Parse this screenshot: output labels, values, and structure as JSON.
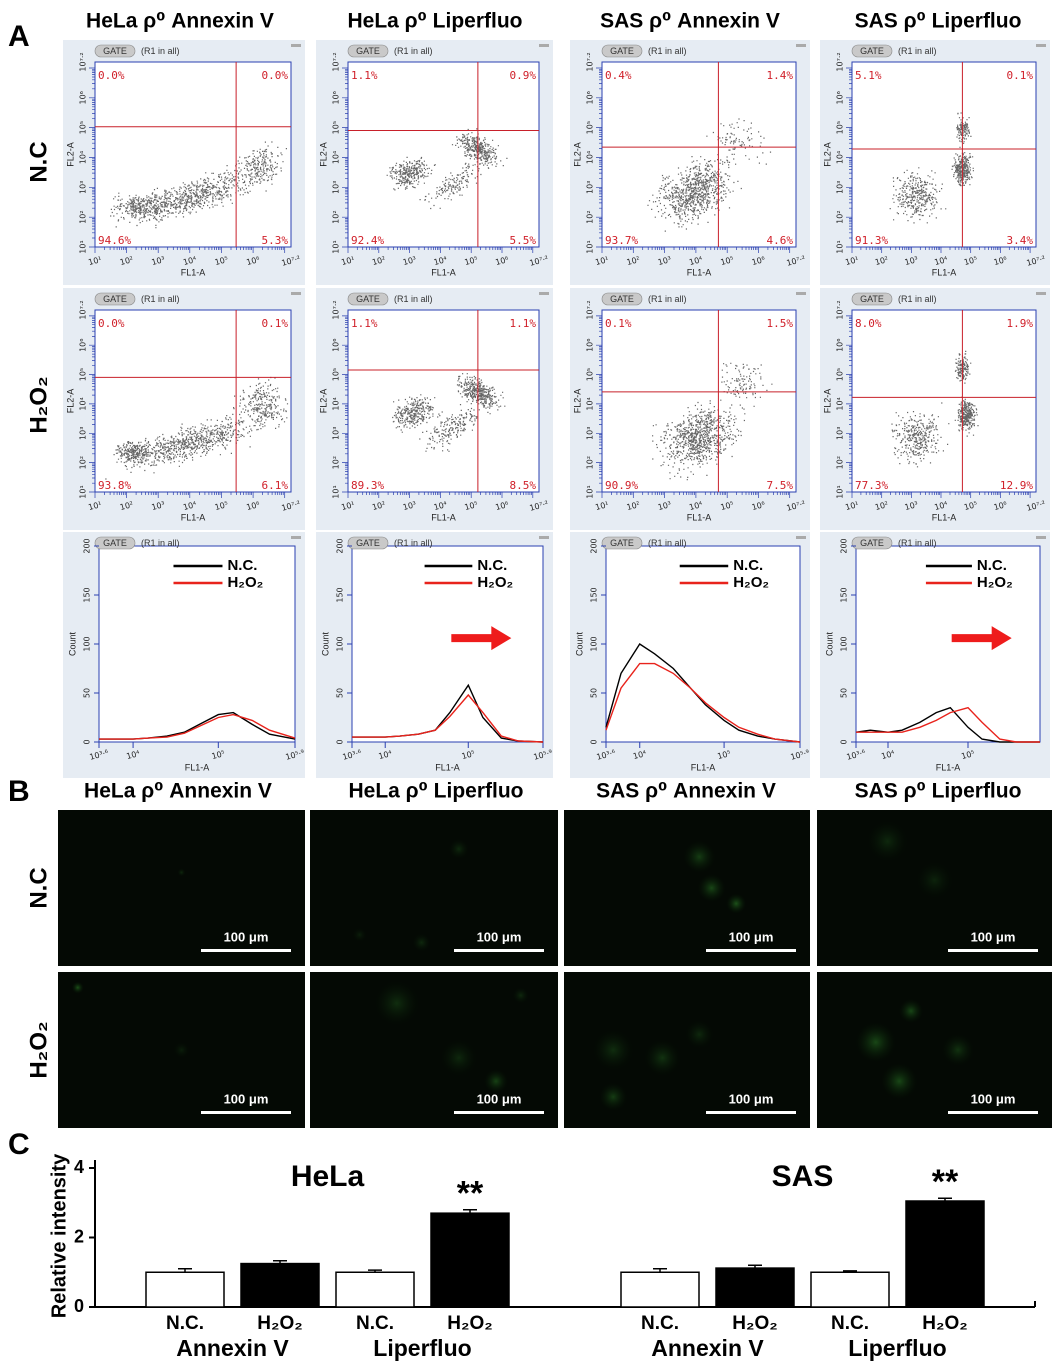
{
  "panel_a": {
    "label": "A",
    "columns": [
      "HeLa ρ⁰ Annexin V",
      "HeLa ρ⁰ Liperfluo",
      "SAS ρ⁰ Annexin V",
      "SAS ρ⁰ Liperfluo"
    ],
    "rows": [
      "N.C",
      "H₂O₂"
    ],
    "gate": "GATE",
    "gate_note": "(R1 in all)",
    "scatter": {
      "xlabel": "FL1-A",
      "ylabel": "FL2-A",
      "ticks": [
        "10¹",
        "10²",
        "10³",
        "10⁴",
        "10⁵",
        "10⁶",
        "10⁷·²"
      ]
    },
    "quadrants": [
      [
        [
          "0.0%",
          "0.0%",
          "94.6%",
          "5.3%"
        ],
        [
          "1.1%",
          "0.9%",
          "92.4%",
          "5.5%"
        ],
        [
          "0.4%",
          "1.4%",
          "93.7%",
          "4.6%"
        ],
        [
          "5.1%",
          "0.1%",
          "91.3%",
          "3.4%"
        ]
      ],
      [
        [
          "0.0%",
          "0.1%",
          "93.8%",
          "6.1%"
        ],
        [
          "1.1%",
          "1.1%",
          "89.3%",
          "8.5%"
        ],
        [
          "0.1%",
          "1.5%",
          "90.9%",
          "7.5%"
        ],
        [
          "8.0%",
          "1.9%",
          "77.3%",
          "12.9%"
        ]
      ]
    ]
  },
  "panel_b": {
    "label": "B",
    "columns": [
      "HeLa ρ⁰ Annexin V",
      "HeLa ρ⁰ Liperfluo",
      "SAS ρ⁰ Annexin V",
      "SAS ρ⁰ Liperfluo"
    ],
    "rows": [
      "N.C",
      "H₂O₂"
    ],
    "scale_bar": "100 μm"
  },
  "panel_c": {
    "label": "C"
  },
  "chart_data": [
    {
      "type": "line",
      "xscale": "log",
      "xlabel": "FL1-A",
      "ylabel": "Count",
      "x": [
        3981,
        6000,
        10000,
        15000,
        25000,
        40000,
        60000,
        100000,
        150000,
        250000,
        400000,
        794328
      ],
      "xlim": [
        3981,
        794328
      ],
      "xticks": [
        {
          "value": 3981,
          "label": "10³·⁶"
        },
        {
          "value": 10000,
          "label": "10⁴"
        },
        {
          "value": 100000,
          "label": "10⁵"
        },
        {
          "value": 794328,
          "label": "10⁵·⁹"
        }
      ],
      "ylim": [
        0,
        200
      ],
      "yticks": [
        0,
        50,
        100,
        150,
        200
      ],
      "series": [
        {
          "name": "N.C.",
          "color": "#000000",
          "values": [
            3,
            3,
            3,
            4,
            6,
            10,
            18,
            28,
            30,
            18,
            8,
            3
          ]
        },
        {
          "name": "H₂O₂",
          "color": "#e8231c",
          "values": [
            3,
            3,
            3,
            4,
            5,
            9,
            16,
            25,
            28,
            22,
            12,
            4
          ]
        }
      ]
    },
    {
      "type": "line",
      "xscale": "log",
      "xlabel": "FL1-A",
      "ylabel": "Count",
      "x": [
        3981,
        6000,
        10000,
        15000,
        25000,
        40000,
        60000,
        100000,
        150000,
        250000,
        400000,
        794328
      ],
      "xlim": [
        3981,
        794328
      ],
      "xticks": [
        {
          "value": 3981,
          "label": "10³·⁶"
        },
        {
          "value": 10000,
          "label": "10⁴"
        },
        {
          "value": 100000,
          "label": "10⁵"
        },
        {
          "value": 794328,
          "label": "10⁵·⁹"
        }
      ],
      "ylim": [
        0,
        200
      ],
      "yticks": [
        0,
        50,
        100,
        150,
        200
      ],
      "series": [
        {
          "name": "N.C.",
          "color": "#000000",
          "values": [
            5,
            5,
            5,
            6,
            8,
            12,
            30,
            58,
            25,
            4,
            1,
            0
          ]
        },
        {
          "name": "H₂O₂",
          "color": "#e8231c",
          "values": [
            5,
            5,
            5,
            6,
            8,
            12,
            26,
            48,
            30,
            6,
            1,
            0
          ]
        }
      ]
    },
    {
      "type": "line",
      "xscale": "log",
      "xlabel": "FL1-A",
      "ylabel": "Count",
      "x": [
        3981,
        6000,
        10000,
        15000,
        25000,
        40000,
        60000,
        100000,
        150000,
        250000,
        400000,
        794328
      ],
      "xlim": [
        3981,
        794328
      ],
      "xticks": [
        {
          "value": 3981,
          "label": "10³·⁶"
        },
        {
          "value": 10000,
          "label": "10⁴"
        },
        {
          "value": 100000,
          "label": "10⁵"
        },
        {
          "value": 794328,
          "label": "10⁵·⁹"
        }
      ],
      "ylim": [
        0,
        200
      ],
      "yticks": [
        0,
        50,
        100,
        150,
        200
      ],
      "series": [
        {
          "name": "N.C.",
          "color": "#000000",
          "values": [
            15,
            70,
            100,
            90,
            75,
            55,
            38,
            22,
            12,
            6,
            3,
            0
          ]
        },
        {
          "name": "H₂O₂",
          "color": "#e8231c",
          "values": [
            12,
            55,
            80,
            80,
            70,
            55,
            40,
            25,
            15,
            8,
            3,
            0
          ]
        }
      ]
    },
    {
      "type": "line",
      "xscale": "log",
      "xlabel": "FL1-A",
      "ylabel": "Count",
      "x": [
        3981,
        6000,
        10000,
        15000,
        25000,
        40000,
        60000,
        100000,
        150000,
        250000,
        400000,
        794328
      ],
      "xlim": [
        3981,
        794328
      ],
      "xticks": [
        {
          "value": 3981,
          "label": "10³·⁶"
        },
        {
          "value": 10000,
          "label": "10⁴"
        },
        {
          "value": 100000,
          "label": "10⁵"
        }
      ],
      "ylim": [
        0,
        200
      ],
      "yticks": [
        0,
        50,
        100,
        150,
        200
      ],
      "series": [
        {
          "name": "N.C.",
          "color": "#000000",
          "values": [
            10,
            12,
            10,
            12,
            20,
            30,
            35,
            15,
            3,
            0,
            0,
            0
          ]
        },
        {
          "name": "H₂O₂",
          "color": "#e8231c",
          "values": [
            10,
            10,
            10,
            10,
            15,
            22,
            30,
            35,
            20,
            3,
            0,
            0
          ]
        }
      ]
    },
    {
      "type": "bar",
      "title": "HeLa",
      "ylabel": "Relative intensity",
      "categories": [
        "N.C.",
        "H₂O₂",
        "N.C.",
        "H₂O₂"
      ],
      "groups": [
        "Annexin V",
        "Liperfluo"
      ],
      "values": [
        1.0,
        1.25,
        1.0,
        2.7
      ],
      "errors": [
        0.1,
        0.08,
        0.06,
        0.1
      ],
      "colors": [
        "#ffffff",
        "#000000",
        "#ffffff",
        "#000000"
      ],
      "significance": [
        null,
        null,
        null,
        "**"
      ],
      "ylim": [
        0,
        4
      ],
      "yticks": [
        0,
        2,
        4
      ]
    },
    {
      "type": "bar",
      "title": "SAS",
      "categories": [
        "N.C.",
        "H₂O₂",
        "N.C.",
        "H₂O₂"
      ],
      "groups": [
        "Annexin V",
        "Liperfluo"
      ],
      "values": [
        1.0,
        1.12,
        1.0,
        3.05
      ],
      "errors": [
        0.1,
        0.08,
        0.04,
        0.08
      ],
      "colors": [
        "#ffffff",
        "#000000",
        "#ffffff",
        "#000000"
      ],
      "significance": [
        null,
        null,
        null,
        "**"
      ],
      "ylim": [
        0,
        4
      ]
    }
  ]
}
